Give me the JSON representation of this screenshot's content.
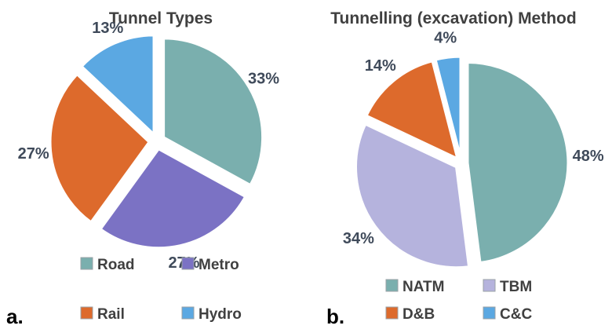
{
  "chart_data": [
    {
      "type": "pie",
      "title": "Tunnel Types",
      "panel_label": "a.",
      "categories": [
        "Road",
        "Metro",
        "Rail",
        "Hydro"
      ],
      "values": [
        33,
        27,
        27,
        13
      ],
      "value_labels": [
        "33%",
        "27%",
        "27%",
        "13%"
      ],
      "colors": [
        "#7aafae",
        "#7b72c4",
        "#dd6a2c",
        "#5ba8e2"
      ],
      "exploded": true,
      "legend": "bottom"
    },
    {
      "type": "pie",
      "title": "Tunnelling (excavation) Method",
      "panel_label": "b.",
      "categories": [
        "NATM",
        "TBM",
        "D&B",
        "C&C"
      ],
      "values": [
        48,
        34,
        14,
        4
      ],
      "value_labels": [
        "48%",
        "34%",
        "14%",
        "4%"
      ],
      "colors": [
        "#7aafae",
        "#b5b3dd",
        "#dd6a2c",
        "#5ba8e2"
      ],
      "exploded": true,
      "legend": "bottom"
    }
  ]
}
